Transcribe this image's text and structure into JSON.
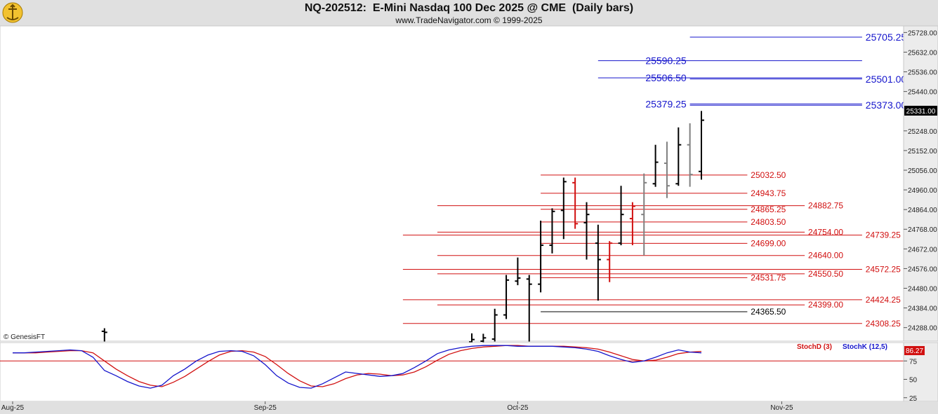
{
  "header": {
    "title": "NQ-202512:  E-Mini Nasdaq 100 Dec 2025 @ CME  (Daily bars)",
    "subtitle": "www.TradeNavigator.com © 1999-2025"
  },
  "watermark": "© GenesisFT",
  "colors": {
    "resistance": "#1515cc",
    "support": "#d11010",
    "neutral": "#000000",
    "stochK": "#1515cc",
    "stochD": "#d11010",
    "badge": "#d11010"
  },
  "chart_data": [
    {
      "type": "ohlc",
      "title": "NQ-202512:  E-Mini Nasdaq 100 Dec 2025 @ CME  (Daily bars)",
      "ylim": [
        24222,
        25760
      ],
      "yticks": [
        25728,
        25632,
        25536,
        25440,
        25248,
        25152,
        25056,
        24960,
        24864,
        24768,
        24672,
        24576,
        24480,
        24384,
        24288
      ],
      "last_price": "25331.00",
      "xticks": [
        {
          "label": "Aug-25",
          "day": 0
        },
        {
          "label": "Sep-25",
          "day": 22
        },
        {
          "label": "Oct-25",
          "day": 44
        },
        {
          "label": "Nov-25",
          "day": 67
        }
      ],
      "bars": [
        {
          "day": 8,
          "o": 24270,
          "h": 24285,
          "l": 24220,
          "c": 24265,
          "color": "#000000"
        },
        {
          "day": 40,
          "o": 24218,
          "h": 24260,
          "l": 24215,
          "c": 24230,
          "color": "#000000"
        },
        {
          "day": 41,
          "o": 24222,
          "h": 24258,
          "l": 24215,
          "c": 24238,
          "color": "#000000"
        },
        {
          "day": 42,
          "o": 24232,
          "h": 24380,
          "l": 24220,
          "c": 24350,
          "color": "#000000"
        },
        {
          "day": 43,
          "o": 24350,
          "h": 24545,
          "l": 24330,
          "c": 24520,
          "color": "#000000"
        },
        {
          "day": 44,
          "o": 24515,
          "h": 24630,
          "l": 24495,
          "c": 24530,
          "color": "#000000"
        },
        {
          "day": 45,
          "o": 24525,
          "h": 24545,
          "l": 24220,
          "c": 24500,
          "color": "#000000"
        },
        {
          "day": 46,
          "o": 24500,
          "h": 24810,
          "l": 24460,
          "c": 24690,
          "color": "#000000"
        },
        {
          "day": 47,
          "o": 24690,
          "h": 24870,
          "l": 24650,
          "c": 24855,
          "color": "#000000"
        },
        {
          "day": 48,
          "o": 24860,
          "h": 25020,
          "l": 24720,
          "c": 25000,
          "color": "#000000"
        },
        {
          "day": 49,
          "o": 24995,
          "h": 25020,
          "l": 24770,
          "c": 24795,
          "color": "#d11010"
        },
        {
          "day": 50,
          "o": 24800,
          "h": 24900,
          "l": 24620,
          "c": 24840,
          "color": "#000000"
        },
        {
          "day": 51,
          "o": 24700,
          "h": 24790,
          "l": 24420,
          "c": 24620,
          "color": "#000000"
        },
        {
          "day": 52,
          "o": 24620,
          "h": 24710,
          "l": 24510,
          "c": 24700,
          "color": "#d11010"
        },
        {
          "day": 53,
          "o": 24700,
          "h": 24980,
          "l": 24690,
          "c": 24840,
          "color": "#000000"
        },
        {
          "day": 54,
          "o": 24820,
          "h": 24900,
          "l": 24690,
          "c": 24880,
          "color": "#d11010"
        },
        {
          "day": 55,
          "o": 24840,
          "h": 25040,
          "l": 24640,
          "c": 24995,
          "color": "#808080"
        },
        {
          "day": 56,
          "o": 24990,
          "h": 25180,
          "l": 24975,
          "c": 25095,
          "color": "#000000"
        },
        {
          "day": 57,
          "o": 25090,
          "h": 25195,
          "l": 24920,
          "c": 24980,
          "color": "#808080"
        },
        {
          "day": 58,
          "o": 24990,
          "h": 25265,
          "l": 24980,
          "c": 25180,
          "color": "#000000"
        },
        {
          "day": 59,
          "o": 25180,
          "h": 25285,
          "l": 24975,
          "c": 25035,
          "color": "#808080"
        },
        {
          "day": 60,
          "o": 25050,
          "h": 25345,
          "l": 25010,
          "c": 25300,
          "color": "#000000"
        }
      ],
      "levels": [
        {
          "price": 25705.25,
          "label": "25705.25",
          "group": "resistance",
          "x1": 59,
          "x2": 74,
          "labelPos": "right",
          "labelDay": 74.3
        },
        {
          "price": 25590.25,
          "label": "25590.25",
          "group": "resistance",
          "x1": 51,
          "x2": 74,
          "labelPos": "left",
          "labelDay": 58.7
        },
        {
          "price": 25506.5,
          "label": "25506.50",
          "group": "resistance",
          "x1": 51,
          "x2": 74,
          "labelPos": "left",
          "labelDay": 58.7
        },
        {
          "price": 25501.0,
          "label": "25501.00",
          "group": "resistance",
          "x1": 59,
          "x2": 74,
          "labelPos": "right",
          "labelDay": 74.3
        },
        {
          "price": 25379.25,
          "label": "25379.25",
          "group": "resistance",
          "x1": 59,
          "x2": 74,
          "labelPos": "left",
          "labelDay": 58.7
        },
        {
          "price": 25373.0,
          "label": "25373.00",
          "group": "resistance",
          "x1": 59,
          "x2": 74,
          "labelPos": "right",
          "labelDay": 74.3
        },
        {
          "price": 25032.5,
          "label": "25032.50",
          "group": "support",
          "x1": 46,
          "x2": 64,
          "labelPos": "right",
          "labelDay": 64.3
        },
        {
          "price": 24943.75,
          "label": "24943.75",
          "group": "support",
          "x1": 46,
          "x2": 64,
          "labelPos": "right",
          "labelDay": 64.3
        },
        {
          "price": 24882.75,
          "label": "24882.75",
          "group": "support",
          "x1": 37,
          "x2": 69,
          "labelPos": "right",
          "labelDay": 69.3
        },
        {
          "price": 24865.25,
          "label": "24865.25",
          "group": "support",
          "x1": 46,
          "x2": 64,
          "labelPos": "right",
          "labelDay": 64.3
        },
        {
          "price": 24803.5,
          "label": "24803.50",
          "group": "support",
          "x1": 46,
          "x2": 64,
          "labelPos": "right",
          "labelDay": 64.3
        },
        {
          "price": 24754.0,
          "label": "24754.00",
          "group": "support",
          "x1": 37,
          "x2": 69,
          "labelPos": "right",
          "labelDay": 69.3
        },
        {
          "price": 24739.25,
          "label": "24739.25",
          "group": "support",
          "x1": 34,
          "x2": 74,
          "labelPos": "right",
          "labelDay": 74.3
        },
        {
          "price": 24699.0,
          "label": "24699.00",
          "group": "support",
          "x1": 46,
          "x2": 64,
          "labelPos": "right",
          "labelDay": 64.3
        },
        {
          "price": 24640.0,
          "label": "24640.00",
          "group": "support",
          "x1": 37,
          "x2": 69,
          "labelPos": "right",
          "labelDay": 69.3
        },
        {
          "price": 24572.25,
          "label": "24572.25",
          "group": "support",
          "x1": 34,
          "x2": 74,
          "labelPos": "right",
          "labelDay": 74.3
        },
        {
          "price": 24550.5,
          "label": "24550.50",
          "group": "support",
          "x1": 37,
          "x2": 69,
          "labelPos": "right",
          "labelDay": 69.3
        },
        {
          "price": 24531.75,
          "label": "24531.75",
          "group": "support",
          "x1": 46,
          "x2": 64,
          "labelPos": "right",
          "labelDay": 64.3
        },
        {
          "price": 24424.25,
          "label": "24424.25",
          "group": "support",
          "x1": 34,
          "x2": 74,
          "labelPos": "right",
          "labelDay": 74.3
        },
        {
          "price": 24399.0,
          "label": "24399.00",
          "group": "support",
          "x1": 37,
          "x2": 69,
          "labelPos": "right",
          "labelDay": 69.3
        },
        {
          "price": 24365.5,
          "label": "24365.50",
          "group": "neutral",
          "x1": 46,
          "x2": 64,
          "labelPos": "right",
          "labelDay": 64.3
        },
        {
          "price": 24308.25,
          "label": "24308.25",
          "group": "support",
          "x1": 34,
          "x2": 74,
          "labelPos": "right",
          "labelDay": 74.3
        }
      ]
    },
    {
      "type": "line",
      "title": "",
      "ylim": [
        20,
        100
      ],
      "yticks": [
        75,
        50,
        25
      ],
      "reference_line": 75,
      "last_value": "86.27",
      "series": [
        {
          "name": "StochK (12,5)",
          "color": "#1515cc",
          "x": [
            0,
            1,
            2,
            3,
            4,
            5,
            6,
            7,
            8,
            9,
            10,
            11,
            12,
            13,
            14,
            15,
            16,
            17,
            18,
            19,
            20,
            21,
            22,
            23,
            24,
            25,
            26,
            27,
            28,
            29,
            30,
            31,
            32,
            33,
            34,
            35,
            36,
            37,
            38,
            39,
            40,
            41,
            42,
            43,
            44,
            45,
            46,
            47,
            48,
            49,
            50,
            51,
            52,
            53,
            54,
            55,
            56,
            57,
            58,
            59,
            60
          ],
          "y": [
            86,
            86,
            87,
            88,
            89,
            90,
            89,
            80,
            62,
            55,
            47,
            41,
            38,
            42,
            55,
            64,
            75,
            83,
            88,
            89,
            88,
            82,
            70,
            55,
            45,
            39,
            38,
            44,
            52,
            60,
            58,
            56,
            54,
            55,
            58,
            66,
            75,
            85,
            90,
            93,
            95,
            96,
            96,
            96,
            95,
            95,
            95,
            95,
            94,
            93,
            91,
            88,
            82,
            77,
            73,
            75,
            80,
            86,
            90,
            87,
            86
          ]
        },
        {
          "name": "StochD (3)",
          "color": "#d11010",
          "x": [
            0,
            1,
            2,
            3,
            4,
            5,
            6,
            7,
            8,
            9,
            10,
            11,
            12,
            13,
            14,
            15,
            16,
            17,
            18,
            19,
            20,
            21,
            22,
            23,
            24,
            25,
            26,
            27,
            28,
            29,
            30,
            31,
            32,
            33,
            34,
            35,
            36,
            37,
            38,
            39,
            40,
            41,
            42,
            43,
            44,
            45,
            46,
            47,
            48,
            49,
            50,
            51,
            52,
            53,
            54,
            55,
            56,
            57,
            58,
            59,
            60
          ],
          "y": [
            86,
            86,
            86,
            87,
            88,
            89,
            89,
            86,
            75,
            64,
            55,
            47,
            42,
            40,
            46,
            54,
            64,
            74,
            83,
            88,
            89,
            87,
            81,
            70,
            58,
            48,
            41,
            40,
            44,
            51,
            56,
            58,
            57,
            55,
            56,
            60,
            67,
            76,
            84,
            89,
            92,
            94,
            95,
            96,
            96,
            95,
            95,
            95,
            95,
            94,
            93,
            91,
            87,
            82,
            77,
            75,
            76,
            80,
            85,
            87,
            88
          ]
        }
      ]
    }
  ]
}
